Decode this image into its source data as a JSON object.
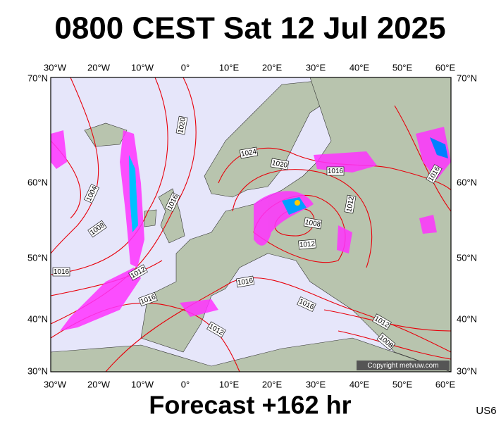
{
  "header": {
    "title": "0800 CEST Sat 12 Jul 2025"
  },
  "map": {
    "lon_labels": [
      "30°W",
      "20°W",
      "10°W",
      "0°",
      "10°E",
      "20°E",
      "30°E",
      "40°E",
      "50°E",
      "60°E"
    ],
    "lat_labels": [
      "70°N",
      "60°N",
      "50°N",
      "40°N",
      "30°N"
    ],
    "isobar_labels": [
      "1020",
      "1024",
      "1020",
      "1016",
      "1016",
      "1004",
      "1016",
      "1012",
      "1008",
      "1008",
      "1012",
      "1016",
      "1012",
      "1016",
      "1016",
      "1016",
      "1012",
      "1012",
      "1008"
    ],
    "copyright": "Copyright metvuw.com"
  },
  "footer": {
    "forecast": "Forecast +162 hr",
    "code": "US6"
  }
}
